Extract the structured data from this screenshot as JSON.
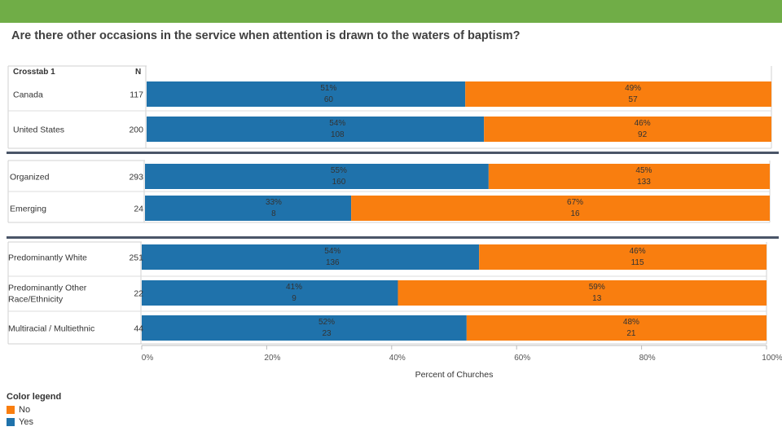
{
  "title": "Are there other occasions in the service when attention is drawn to the waters of baptism?",
  "colors": {
    "no": "#f97e0f",
    "yes": "#1f72ab",
    "header": "#70ad47",
    "separator": "#4a5568"
  },
  "chart_data": {
    "type": "bar",
    "orientation": "horizontal",
    "stacked": true,
    "header_label": "Crosstab 1",
    "n_label": "N",
    "xlabel": "Percent of Churches",
    "xlim": [
      0,
      100
    ],
    "xticks": [
      "0%",
      "20%",
      "40%",
      "60%",
      "80%",
      "100%"
    ],
    "groups": [
      {
        "rows": [
          {
            "label": [
              "Canada"
            ],
            "n": "117",
            "yes_pct": 51,
            "yes_count": "60",
            "no_pct": 49,
            "no_count": "57"
          },
          {
            "label": [
              "United States"
            ],
            "n": "200",
            "yes_pct": 54,
            "yes_count": "108",
            "no_pct": 46,
            "no_count": "92"
          }
        ]
      },
      {
        "rows": [
          {
            "label": [
              "Organized"
            ],
            "n": "293",
            "yes_pct": 55,
            "yes_count": "160",
            "no_pct": 45,
            "no_count": "133"
          },
          {
            "label": [
              "Emerging"
            ],
            "n": "24",
            "yes_pct": 33,
            "yes_count": "8",
            "no_pct": 67,
            "no_count": "16"
          }
        ]
      },
      {
        "rows": [
          {
            "label": [
              "Predominantly White"
            ],
            "n": "251",
            "yes_pct": 54,
            "yes_count": "136",
            "no_pct": 46,
            "no_count": "115"
          },
          {
            "label": [
              "Predominantly Other",
              "Race/Ethnicity"
            ],
            "n": "22",
            "yes_pct": 41,
            "yes_count": "9",
            "no_pct": 59,
            "no_count": "13"
          },
          {
            "label": [
              "Multiracial / Multiethnic"
            ],
            "n": "44",
            "yes_pct": 52,
            "yes_count": "23",
            "no_pct": 48,
            "no_count": "21"
          }
        ]
      }
    ],
    "legend": {
      "title": "Color legend",
      "items": [
        {
          "label": "No",
          "color": "#f97e0f"
        },
        {
          "label": "Yes",
          "color": "#1f72ab"
        }
      ]
    }
  }
}
